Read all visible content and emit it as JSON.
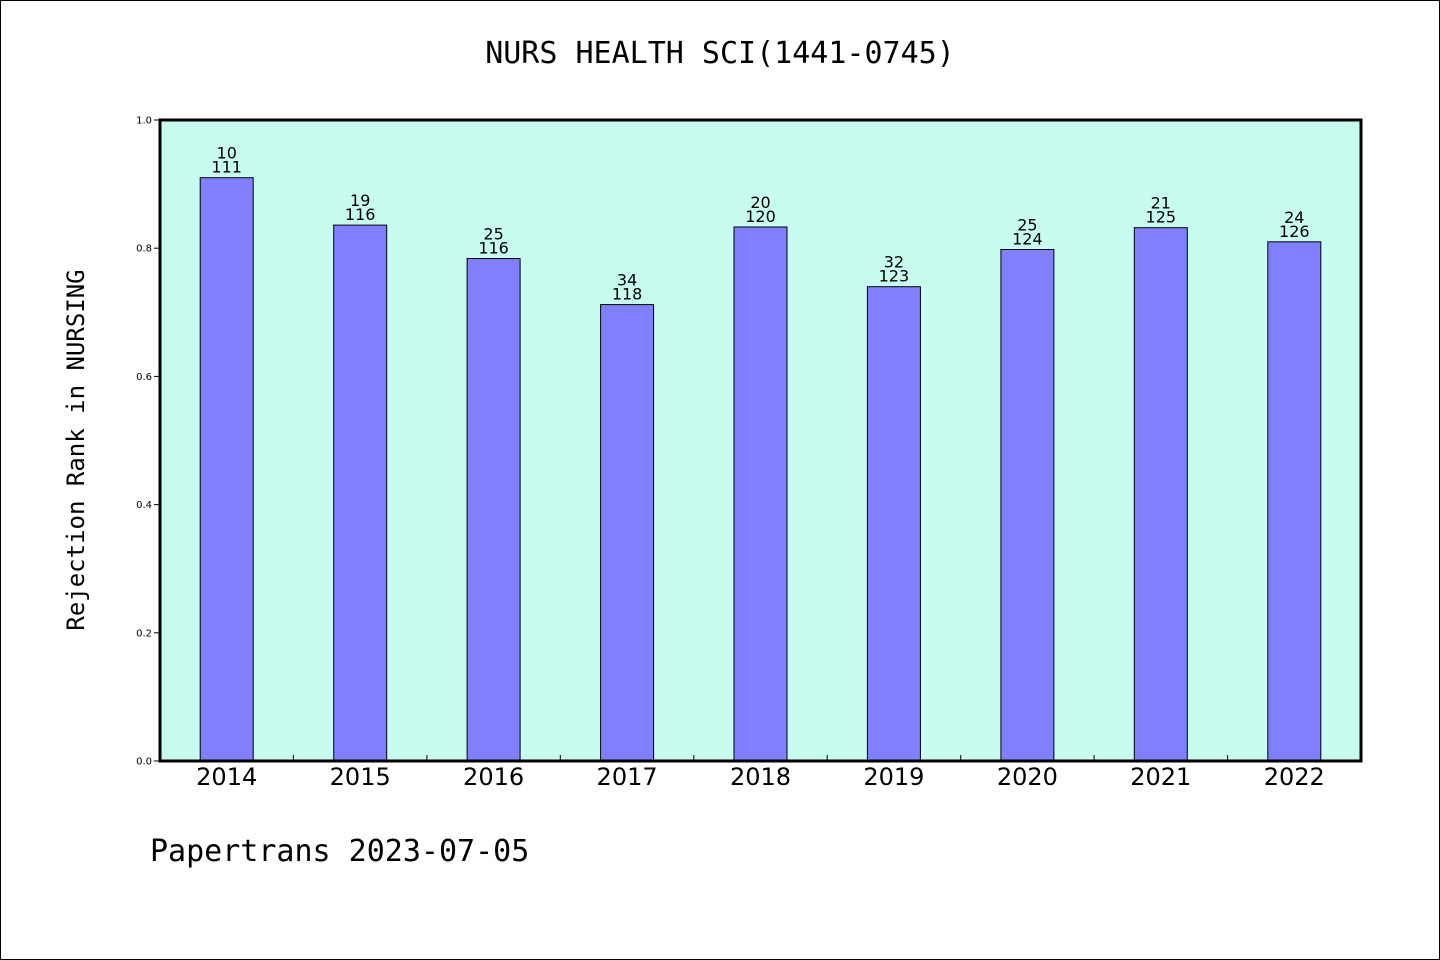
{
  "chart_data": {
    "type": "bar",
    "title": "NURS HEALTH SCI(1441-0745)",
    "xlabel": "",
    "ylabel": "Rejection Rank in NURSING",
    "categories": [
      "2014",
      "2015",
      "2016",
      "2017",
      "2018",
      "2019",
      "2020",
      "2021",
      "2022"
    ],
    "values": [
      0.91,
      0.836,
      0.784,
      0.712,
      0.833,
      0.74,
      0.798,
      0.832,
      0.81
    ],
    "bar_labels": [
      {
        "top": "10",
        "bottom": "111"
      },
      {
        "top": "19",
        "bottom": "116"
      },
      {
        "top": "25",
        "bottom": "116"
      },
      {
        "top": "34",
        "bottom": "118"
      },
      {
        "top": "20",
        "bottom": "120"
      },
      {
        "top": "32",
        "bottom": "123"
      },
      {
        "top": "25",
        "bottom": "124"
      },
      {
        "top": "21",
        "bottom": "125"
      },
      {
        "top": "24",
        "bottom": "126"
      }
    ],
    "yticks": [
      "0.0",
      "0.2",
      "0.4",
      "0.6",
      "0.8",
      "1.0"
    ],
    "ylim": [
      0,
      1.0
    ],
    "grid": false,
    "legend": "none",
    "colors": {
      "bar": "#8080ff",
      "plot_background": "#c8fcee",
      "edge": "#000000"
    }
  },
  "footer": {
    "text": "Papertrans 2023-07-05"
  }
}
